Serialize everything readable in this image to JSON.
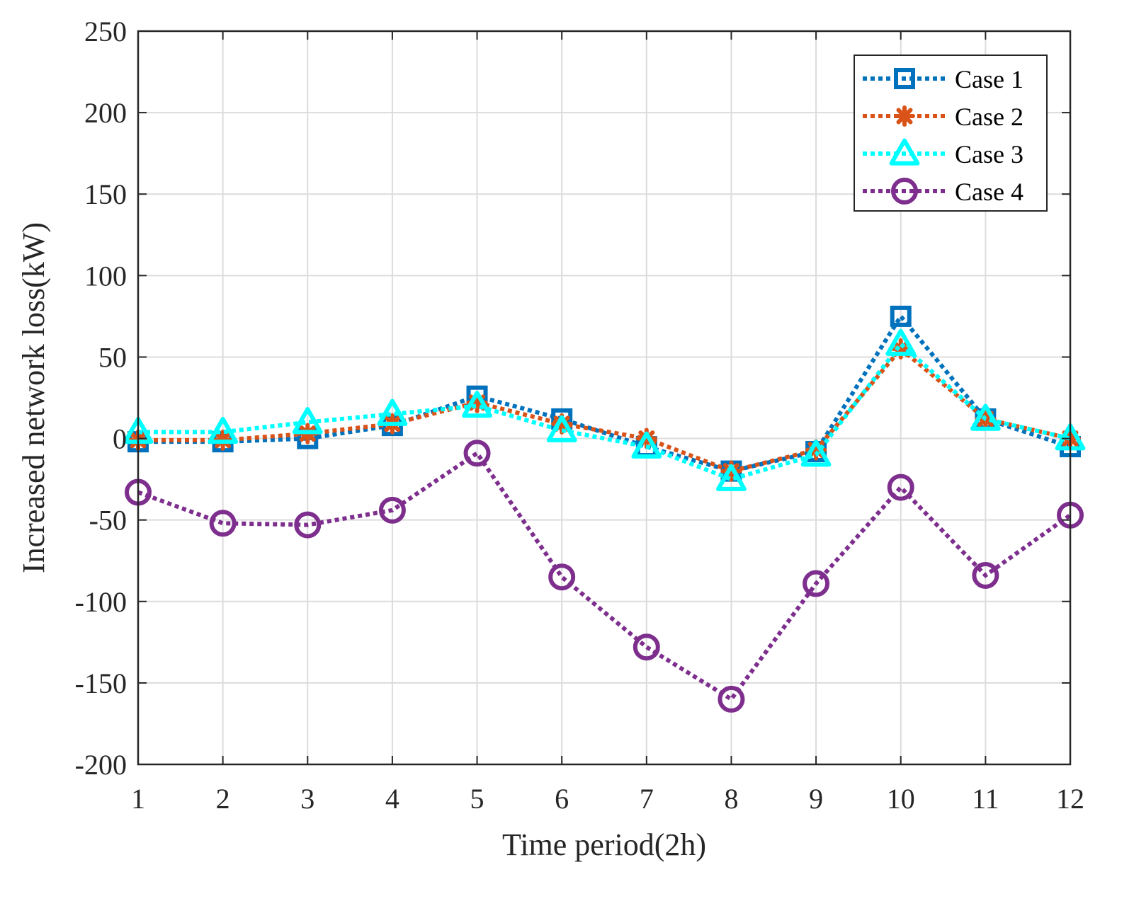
{
  "chart_data": {
    "type": "line",
    "title": "",
    "xlabel": "Time period(2h)",
    "ylabel": "Increased network loss(kW)",
    "x": [
      1,
      2,
      3,
      4,
      5,
      6,
      7,
      8,
      9,
      10,
      11,
      12
    ],
    "xticks": [
      "1",
      "2",
      "3",
      "4",
      "5",
      "6",
      "7",
      "8",
      "9",
      "10",
      "11",
      "12"
    ],
    "xlim": [
      1,
      12
    ],
    "ylim": [
      -200,
      250
    ],
    "yticks": [
      "-200",
      "-150",
      "-100",
      "-50",
      "0",
      "50",
      "100",
      "150",
      "200",
      "250"
    ],
    "grid": true,
    "legend_position": "top-right",
    "series": [
      {
        "name": "Case 1",
        "color": "#0072BD",
        "marker": "square",
        "values": [
          -2,
          -2,
          0,
          8,
          26,
          12,
          -5,
          -20,
          -8,
          75,
          12,
          -5
        ]
      },
      {
        "name": "Case 2",
        "color": "#D95319",
        "marker": "asterisk",
        "values": [
          -1,
          -1,
          3,
          9,
          22,
          9,
          0,
          -20,
          -7,
          55,
          12,
          0
        ]
      },
      {
        "name": "Case 3",
        "color": "#00FFFF",
        "marker": "triangle",
        "values": [
          4,
          4,
          10,
          15,
          20,
          5,
          -5,
          -25,
          -10,
          58,
          12,
          0
        ]
      },
      {
        "name": "Case 4",
        "color": "#7E2F8E",
        "marker": "circle",
        "values": [
          -33,
          -52,
          -53,
          -44,
          -9,
          -85,
          -128,
          -160,
          -89,
          -30,
          -84,
          -47
        ]
      }
    ]
  }
}
